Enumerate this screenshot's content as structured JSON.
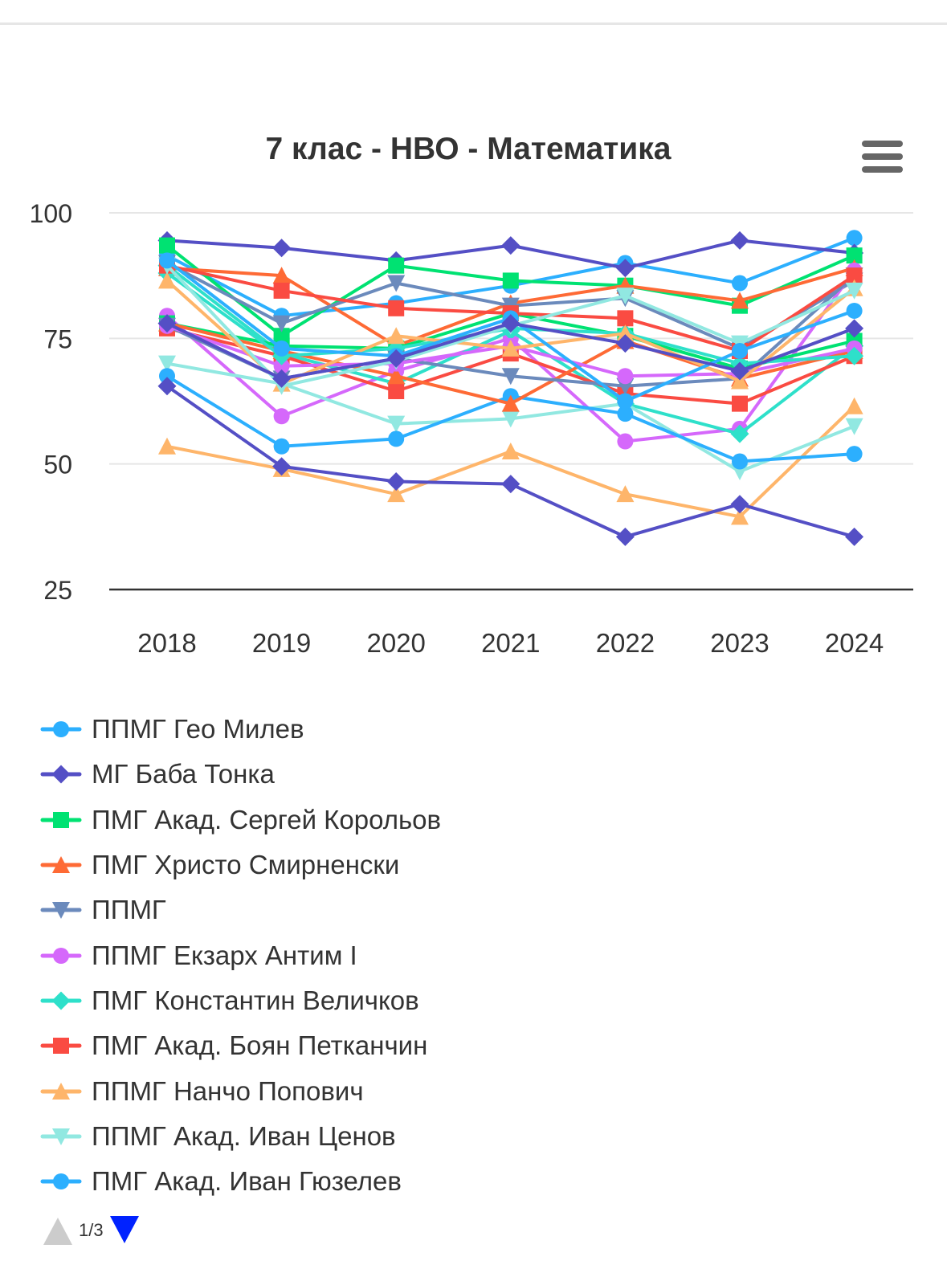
{
  "chart_data": {
    "type": "line",
    "title": "7 клас - НВО - Математика",
    "x": [
      "2018",
      "2019",
      "2020",
      "2021",
      "2022",
      "2023",
      "2024"
    ],
    "ylim": [
      25,
      100
    ],
    "yticks": [
      "25",
      "50",
      "75",
      "100"
    ],
    "grid": true,
    "legend_placement": "bottom",
    "series": [
      {
        "name": "ППМГ Гео Милев",
        "color": "#2caffe",
        "marker": "circle",
        "values": [
          91.5,
          79.5,
          82,
          85.5,
          90,
          86,
          95
        ]
      },
      {
        "name": "МГ Баба Тонка",
        "color": "#544fc5",
        "marker": "diamond",
        "values": [
          94.5,
          93,
          90.5,
          93.5,
          89,
          94.5,
          92
        ]
      },
      {
        "name": "ПМГ Акад. Сергей Корольов",
        "color": "#00e272",
        "marker": "square",
        "values": [
          93.5,
          75.5,
          89.5,
          86.5,
          85.5,
          81.5,
          91.5
        ]
      },
      {
        "name": "ПМГ Христо Смирненски",
        "color": "#fe6a35",
        "marker": "triangle",
        "values": [
          89,
          87.5,
          73.5,
          82,
          85.5,
          82.5,
          89
        ]
      },
      {
        "name": "ППМГ",
        "color": "#6b8abc",
        "marker": "triangle-down",
        "values": [
          90,
          78,
          86,
          81.5,
          83,
          73,
          86.5
        ]
      },
      {
        "name": "ППМГ Екзарх Антим I",
        "color": "#d568fb",
        "marker": "circle",
        "values": [
          79.5,
          59.5,
          68.5,
          75,
          54.5,
          57,
          88.5
        ]
      },
      {
        "name": "ПМГ Константин Величков",
        "color": "#2ee0ca",
        "marker": "diamond",
        "values": [
          89.5,
          72,
          66,
          76.5,
          62,
          56,
          73.5
        ]
      },
      {
        "name": "ПМГ Акад. Боян Петканчин",
        "color": "#fa4b42",
        "marker": "square",
        "values": [
          77,
          71.5,
          64.5,
          72,
          64,
          62,
          71.5
        ]
      },
      {
        "name": "ППМГ Нанчо Попович",
        "color": "#feb56a",
        "marker": "triangle",
        "values": [
          53.5,
          49,
          44,
          52.5,
          44,
          39.5,
          61.5
        ]
      },
      {
        "name": "ППМГ Акад. Иван Ценов",
        "color": "#91e8e1",
        "marker": "triangle-down",
        "values": [
          70,
          66,
          58,
          59,
          62,
          48.5,
          57.5
        ]
      },
      {
        "name": "ПМГ Акад. Иван Гюзелев",
        "color": "#2caffe",
        "marker": "circle",
        "values": [
          67.5,
          53.5,
          55,
          63.5,
          60,
          50.5,
          52
        ]
      },
      {
        "name": "",
        "color": "#544fc5",
        "marker": "diamond",
        "values": [
          65.5,
          49.5,
          46.5,
          46,
          35.5,
          42,
          35.5
        ]
      },
      {
        "name": "",
        "color": "#00e272",
        "marker": "square",
        "values": [
          78,
          73.5,
          73,
          80,
          75.5,
          69,
          74.5
        ]
      },
      {
        "name": "",
        "color": "#fe6a35",
        "marker": "triangle",
        "values": [
          78,
          72.5,
          67.5,
          62,
          74.5,
          67,
          72.5
        ]
      },
      {
        "name": "",
        "color": "#6b8abc",
        "marker": "triangle-down",
        "values": [
          77.5,
          67,
          71,
          67.5,
          65.5,
          67,
          87.5
        ]
      },
      {
        "name": "",
        "color": "#d568fb",
        "marker": "circle",
        "values": [
          77.5,
          69.5,
          70,
          73.5,
          67.5,
          68,
          73
        ]
      },
      {
        "name": "",
        "color": "#2ee0ca",
        "marker": "diamond",
        "values": [
          88,
          71.5,
          73,
          77,
          76,
          70,
          71.5
        ]
      },
      {
        "name": "",
        "color": "#fa4b42",
        "marker": "square",
        "values": [
          89.5,
          84.5,
          81,
          80,
          79,
          72.5,
          87.5
        ]
      },
      {
        "name": "",
        "color": "#feb56a",
        "marker": "triangle",
        "values": [
          86.5,
          66,
          75.5,
          73,
          76,
          66.5,
          85
        ]
      },
      {
        "name": "",
        "color": "#91e8e1",
        "marker": "triangle-down",
        "values": [
          89.5,
          65.5,
          70.5,
          77.5,
          83.5,
          74,
          84.5
        ]
      },
      {
        "name": "",
        "color": "#2caffe",
        "marker": "circle",
        "values": [
          90.5,
          73,
          71.5,
          79,
          62.5,
          72.5,
          80.5
        ]
      },
      {
        "name": "",
        "color": "#544fc5",
        "marker": "diamond",
        "values": [
          78,
          67,
          71,
          78,
          74,
          68.5,
          77
        ]
      }
    ]
  },
  "legend": {
    "page_indicator": "1/3",
    "up_color": "#cccccc",
    "down_color": "#0022ff"
  },
  "menu": {
    "icon": "hamburger-menu-icon",
    "color": "#666666"
  }
}
